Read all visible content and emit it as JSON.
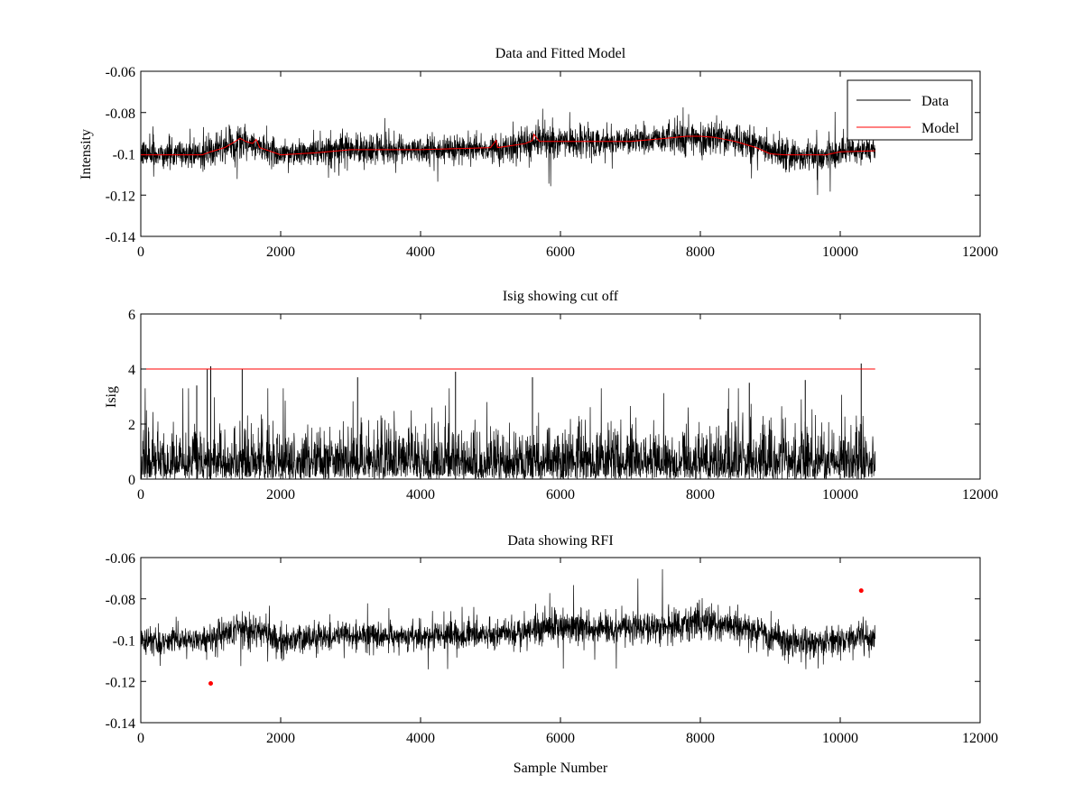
{
  "chart_data": [
    {
      "type": "line",
      "title": "Data and Fitted Model",
      "xlabel": "",
      "ylabel": "Intensity",
      "xlim": [
        0,
        12000
      ],
      "ylim": [
        -0.14,
        -0.06
      ],
      "x_ticks": [
        0,
        2000,
        4000,
        6000,
        8000,
        10000,
        12000
      ],
      "x_tick_labels": [
        "0",
        "2000",
        "4000",
        "6000",
        "8000",
        "10000",
        "12000"
      ],
      "y_ticks": [
        -0.14,
        -0.12,
        -0.1,
        -0.08,
        -0.06
      ],
      "y_tick_labels": [
        "-0.14",
        "-0.12",
        "-0.1",
        "-0.08",
        "-0.06"
      ],
      "legend": "top-right",
      "legend_entries": [
        "Data",
        "Model"
      ],
      "series": [
        {
          "name": "Data",
          "color": "#000000",
          "kind": "noisy-band",
          "x_range": [
            0,
            10500
          ],
          "envelope": {
            "x": [
              0,
              500,
              900,
              1200,
              1400,
              1600,
              2000,
              2500,
              3000,
              4000,
              5000,
              5400,
              5600,
              6000,
              7000,
              7500,
              8000,
              8500,
              9000,
              9300,
              9800,
              10000,
              10500
            ],
            "center": [
              -0.1,
              -0.1,
              -0.1,
              -0.097,
              -0.094,
              -0.096,
              -0.1,
              -0.099,
              -0.098,
              -0.098,
              -0.097,
              -0.096,
              -0.094,
              -0.094,
              -0.094,
              -0.093,
              -0.092,
              -0.093,
              -0.098,
              -0.101,
              -0.101,
              -0.099,
              -0.098
            ],
            "spread": [
              0.008,
              0.008,
              0.008,
              0.009,
              0.01,
              0.009,
              0.008,
              0.008,
              0.008,
              0.008,
              0.008,
              0.009,
              0.01,
              0.009,
              0.008,
              0.009,
              0.01,
              0.009,
              0.009,
              0.01,
              0.009,
              0.008,
              0.008
            ]
          }
        },
        {
          "name": "Model",
          "color": "#ff0000",
          "kind": "line",
          "x": [
            0,
            880,
            1000,
            1200,
            1350,
            1420,
            1500,
            1600,
            1650,
            1700,
            2000,
            2500,
            3000,
            4000,
            5000,
            5080,
            5100,
            5300,
            5500,
            5600,
            5620,
            5700,
            6000,
            6500,
            7000,
            7500,
            7800,
            8000,
            8200,
            8500,
            8800,
            9000,
            9200,
            9800,
            10000,
            10500
          ],
          "y": [
            -0.1005,
            -0.1005,
            -0.099,
            -0.097,
            -0.094,
            -0.0925,
            -0.094,
            -0.095,
            -0.093,
            -0.097,
            -0.1005,
            -0.0995,
            -0.098,
            -0.098,
            -0.097,
            -0.0935,
            -0.097,
            -0.096,
            -0.095,
            -0.0935,
            -0.0905,
            -0.094,
            -0.094,
            -0.094,
            -0.094,
            -0.0925,
            -0.0915,
            -0.0915,
            -0.092,
            -0.094,
            -0.097,
            -0.1,
            -0.1005,
            -0.1005,
            -0.099,
            -0.0985
          ]
        }
      ]
    },
    {
      "type": "line",
      "title": "Isig showing cut off",
      "xlabel": "",
      "ylabel": "Isig",
      "xlim": [
        0,
        12000
      ],
      "ylim": [
        0,
        6
      ],
      "x_ticks": [
        0,
        2000,
        4000,
        6000,
        8000,
        10000,
        12000
      ],
      "x_tick_labels": [
        "0",
        "2000",
        "4000",
        "6000",
        "8000",
        "10000",
        "12000"
      ],
      "y_ticks": [
        0,
        2,
        4,
        6
      ],
      "y_tick_labels": [
        "0",
        "2",
        "4",
        "6"
      ],
      "series": [
        {
          "color": "#000000",
          "kind": "abs-noise",
          "x_range": [
            0,
            10500
          ],
          "typical_max": 2.5,
          "peaks": [
            {
              "x": 800,
              "y": 3.4
            },
            {
              "x": 950,
              "y": 4.0
            },
            {
              "x": 1000,
              "y": 4.1
            },
            {
              "x": 1450,
              "y": 4.0
            },
            {
              "x": 3100,
              "y": 3.7
            },
            {
              "x": 4500,
              "y": 3.9
            },
            {
              "x": 5600,
              "y": 3.7
            },
            {
              "x": 8700,
              "y": 3.5
            },
            {
              "x": 9500,
              "y": 3.6
            },
            {
              "x": 10300,
              "y": 4.2
            }
          ]
        },
        {
          "color": "#ff0000",
          "kind": "cutoff",
          "x": [
            0,
            10500
          ],
          "y": [
            4,
            4
          ]
        }
      ]
    },
    {
      "type": "line",
      "title": "Data showing RFI",
      "xlabel": "Sample Number",
      "ylabel": "",
      "xlim": [
        0,
        12000
      ],
      "ylim": [
        -0.14,
        -0.06
      ],
      "x_ticks": [
        0,
        2000,
        4000,
        6000,
        8000,
        10000,
        12000
      ],
      "x_tick_labels": [
        "0",
        "2000",
        "4000",
        "6000",
        "8000",
        "10000",
        "12000"
      ],
      "y_ticks": [
        -0.14,
        -0.12,
        -0.1,
        -0.08,
        -0.06
      ],
      "y_tick_labels": [
        "-0.14",
        "-0.12",
        "-0.1",
        "-0.08",
        "-0.06"
      ],
      "series": [
        {
          "color": "#000000",
          "kind": "noisy-band",
          "x_range": [
            0,
            10500
          ],
          "envelope": {
            "x": [
              0,
              500,
              900,
              1200,
              1400,
              1600,
              2000,
              2500,
              3000,
              4000,
              5000,
              5400,
              5600,
              6000,
              7000,
              7500,
              8000,
              8500,
              9000,
              9300,
              9800,
              10000,
              10500
            ],
            "center": [
              -0.1,
              -0.1,
              -0.1,
              -0.097,
              -0.094,
              -0.096,
              -0.1,
              -0.099,
              -0.098,
              -0.098,
              -0.097,
              -0.096,
              -0.094,
              -0.094,
              -0.094,
              -0.093,
              -0.092,
              -0.093,
              -0.098,
              -0.101,
              -0.101,
              -0.099,
              -0.098
            ],
            "spread": [
              0.008,
              0.008,
              0.008,
              0.009,
              0.01,
              0.009,
              0.008,
              0.008,
              0.008,
              0.008,
              0.008,
              0.009,
              0.01,
              0.009,
              0.008,
              0.009,
              0.01,
              0.009,
              0.009,
              0.01,
              0.009,
              0.008,
              0.008
            ]
          }
        },
        {
          "color": "#ff0000",
          "kind": "markers",
          "x": [
            1000,
            10300
          ],
          "y": [
            -0.121,
            -0.076
          ]
        }
      ]
    }
  ]
}
